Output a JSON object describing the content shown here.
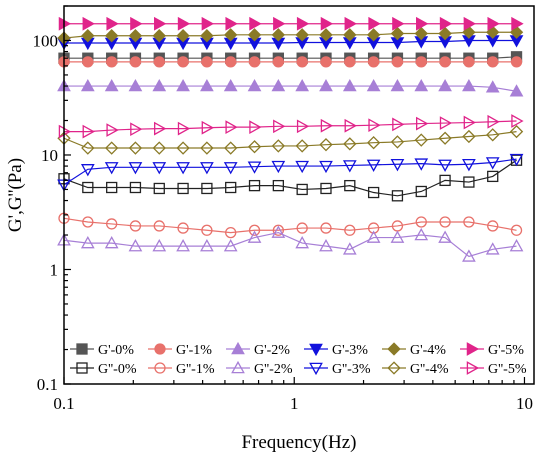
{
  "chart_data": {
    "type": "scatter",
    "xlabel": "Frequency(Hz)",
    "ylabel": "G',G''(Pa)",
    "xscale": "log",
    "yscale": "log",
    "xlim": [
      0.1,
      11
    ],
    "ylim": [
      0.1,
      200
    ],
    "x_ticks": [
      0.1,
      1,
      10
    ],
    "x_tick_labels": [
      "0.1",
      "1",
      "10"
    ],
    "y_ticks": [
      0.1,
      1,
      10,
      100
    ],
    "y_tick_labels": [
      "0.1",
      "1",
      "10",
      "100"
    ],
    "legend_position": "bottom",
    "x": [
      0.1,
      0.1269,
      0.1611,
      0.2043,
      0.2593,
      0.329,
      0.4175,
      0.5297,
      0.6723,
      0.8531,
      1.0826,
      1.3738,
      1.7433,
      2.2122,
      2.8072,
      3.5623,
      4.5205,
      5.7364,
      7.2794,
      9.2373
    ],
    "series": [
      {
        "name": "G'-0%",
        "marker": "square",
        "filled": true,
        "color": "#555555",
        "values": [
          70,
          70,
          70,
          70,
          70,
          70,
          70,
          70,
          70,
          70,
          70,
          70,
          70,
          70,
          70,
          70,
          70,
          70,
          70,
          72
        ]
      },
      {
        "name": "G'-1%",
        "marker": "circle",
        "filled": true,
        "color": "#e8716b",
        "values": [
          65,
          65,
          65,
          65,
          65,
          65,
          65,
          65,
          65,
          65,
          65,
          65,
          65,
          65,
          65,
          65,
          65,
          65,
          65,
          65
        ]
      },
      {
        "name": "G'-2%",
        "marker": "triangle-up",
        "filled": true,
        "color": "#a77fd6",
        "values": [
          40,
          40,
          40,
          40,
          40,
          40,
          40,
          40,
          40,
          40,
          40,
          40,
          40,
          40,
          40,
          40,
          40,
          40,
          39,
          36
        ]
      },
      {
        "name": "G'-3%",
        "marker": "triangle-down",
        "filled": true,
        "color": "#1111dd",
        "values": [
          95,
          95,
          95,
          95,
          95,
          95,
          95,
          95,
          95,
          95,
          96,
          96,
          96,
          96,
          96,
          98,
          98,
          100,
          100,
          100
        ]
      },
      {
        "name": "G'-4%",
        "marker": "diamond",
        "filled": true,
        "color": "#8a7a27",
        "values": [
          105,
          110,
          110,
          110,
          110,
          110,
          110,
          112,
          112,
          112,
          112,
          112,
          112,
          112,
          115,
          115,
          115,
          118,
          118,
          118
        ]
      },
      {
        "name": "G'-5%",
        "marker": "triangle-right",
        "filled": true,
        "color": "#e0248a",
        "values": [
          140,
          140,
          140,
          140,
          140,
          140,
          140,
          140,
          140,
          140,
          140,
          140,
          140,
          140,
          140,
          140,
          140,
          140,
          140,
          140
        ]
      },
      {
        "name": "G''-0%",
        "marker": "square",
        "filled": false,
        "color": "#222222",
        "values": [
          6.2,
          5.2,
          5.2,
          5.2,
          5.1,
          5.1,
          5.1,
          5.2,
          5.4,
          5.4,
          5.0,
          5.1,
          5.4,
          4.7,
          4.4,
          4.8,
          6.0,
          5.8,
          6.5,
          9.0
        ]
      },
      {
        "name": "G''-1%",
        "marker": "circle",
        "filled": false,
        "color": "#e8716b",
        "values": [
          2.8,
          2.6,
          2.5,
          2.4,
          2.4,
          2.3,
          2.2,
          2.1,
          2.2,
          2.2,
          2.3,
          2.3,
          2.2,
          2.3,
          2.4,
          2.6,
          2.6,
          2.6,
          2.4,
          2.2
        ]
      },
      {
        "name": "G''-2%",
        "marker": "triangle-up",
        "filled": false,
        "color": "#a77fd6",
        "values": [
          1.8,
          1.7,
          1.7,
          1.6,
          1.6,
          1.6,
          1.6,
          1.6,
          1.9,
          2.1,
          1.7,
          1.6,
          1.5,
          1.9,
          1.9,
          2.0,
          1.9,
          1.3,
          1.5,
          1.6
        ]
      },
      {
        "name": "G''-3%",
        "marker": "triangle-down",
        "filled": false,
        "color": "#1111dd",
        "values": [
          5.5,
          7.5,
          7.8,
          7.8,
          7.8,
          7.8,
          7.8,
          7.8,
          7.9,
          8.0,
          8.0,
          8.0,
          8.1,
          8.2,
          8.3,
          8.4,
          8.2,
          8.3,
          8.6,
          9.2
        ]
      },
      {
        "name": "G''-4%",
        "marker": "diamond",
        "filled": false,
        "color": "#8a7a27",
        "values": [
          14.0,
          11.5,
          11.5,
          11.5,
          11.5,
          11.5,
          11.5,
          11.5,
          11.8,
          12.0,
          12.0,
          12.3,
          12.5,
          12.8,
          13.0,
          13.5,
          14.0,
          14.5,
          15.0,
          16.0
        ]
      },
      {
        "name": "G''-5%",
        "marker": "triangle-right",
        "filled": false,
        "color": "#e0248a",
        "values": [
          16.0,
          16.0,
          16.5,
          16.8,
          17.0,
          17.0,
          17.3,
          17.5,
          17.5,
          17.8,
          17.8,
          18.0,
          18.0,
          18.2,
          18.5,
          18.8,
          19.0,
          19.2,
          19.5,
          19.8
        ]
      }
    ]
  }
}
